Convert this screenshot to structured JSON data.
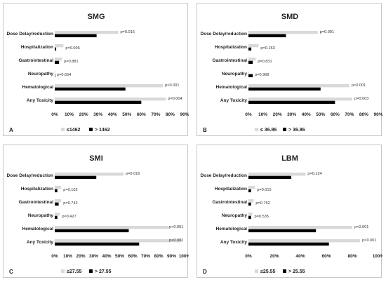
{
  "colors": {
    "low": "#d9d9d9",
    "high": "#000000",
    "text": "#222222",
    "border": "#c8c8c8"
  },
  "chart_data": [
    {
      "type": "bar",
      "title": "SMG",
      "panel_label": "A",
      "categories": [
        "Dose Delay/reduction",
        "Hospitalization",
        "Gastrointestinal",
        "Neuropathy",
        "Hematological",
        "Any Toxicity"
      ],
      "xlim": [
        0,
        0.9
      ],
      "ticks": [
        "0%",
        "10%",
        "20%",
        "30%",
        "40%",
        "50%",
        "60%",
        "70%",
        "80%",
        "90%"
      ],
      "series": [
        {
          "name": "≤1462",
          "values": [
            0.44,
            0.06,
            0.05,
            0.0,
            0.75,
            0.77
          ]
        },
        {
          "name": "> 1462",
          "values": [
            0.29,
            0.01,
            0.03,
            0.0,
            0.49,
            0.6
          ]
        }
      ],
      "annotations": [
        "p=0.015",
        "p=0.006",
        "p=0.881",
        "p=0.654",
        "p<0.001",
        "p=0.004"
      ],
      "legend": [
        "≤1462",
        "> 1462"
      ]
    },
    {
      "type": "bar",
      "title": "SMD",
      "panel_label": "B",
      "categories": [
        "Dose Delay/reduction",
        "Hospitalization",
        "Gastrointestinal",
        "Neuropathy",
        "Hematological",
        "Any Toxicity"
      ],
      "xlim": [
        0,
        0.9
      ],
      "ticks": [
        "0%",
        "10%",
        "20%",
        "30%",
        "40%",
        "50%",
        "60%",
        "70%",
        "80%",
        "90%"
      ],
      "series": [
        {
          "name": "≤ 36.86",
          "values": [
            0.48,
            0.07,
            0.05,
            0.0,
            0.7,
            0.72
          ]
        },
        {
          "name": "> 36.86",
          "values": [
            0.26,
            0.02,
            0.03,
            0.03,
            0.5,
            0.6
          ]
        }
      ],
      "annotations": [
        "p=0.001",
        "p=0.153",
        "p=0.831",
        "p=0.968",
        "p<0.001",
        "p=0.003"
      ],
      "legend": [
        "≤ 36.86",
        "> 36.86"
      ]
    },
    {
      "type": "bar",
      "title": "SMI",
      "panel_label": "C",
      "categories": [
        "Dose Delay/reduction",
        "Hospitalization",
        "Gastrointestinal",
        "Neuropathy",
        "Hematological",
        "Any Toxicity"
      ],
      "xlim": [
        0,
        1.0
      ],
      "ticks": [
        "0%",
        "10%",
        "20%",
        "30%",
        "40%",
        "50%",
        "60%",
        "70%",
        "80%",
        "90%",
        "100%"
      ],
      "series": [
        {
          "name": "≤27.55",
          "values": [
            0.53,
            0.05,
            0.05,
            0.04,
            0.88,
            0.98
          ]
        },
        {
          "name": "> 27.55",
          "values": [
            0.32,
            0.02,
            0.03,
            0.02,
            0.57,
            0.65
          ]
        }
      ],
      "annotations": [
        "p=0.016",
        "p=0.102",
        "p=0.742",
        "p=0.427",
        "p<0.001",
        "p<0.001"
      ],
      "legend": [
        "≤27.55",
        "> 27.55"
      ]
    },
    {
      "type": "bar",
      "title": "LBM",
      "panel_label": "D",
      "categories": [
        "Dose Delay/reduction",
        "Hospitalization",
        "Gastrointestinal",
        "Neuropathy",
        "Hematological",
        "Any Toxicity"
      ],
      "xlim": [
        0,
        1.0
      ],
      "ticks": [
        "0%",
        "20%",
        "40%",
        "60%",
        "80%",
        "100%"
      ],
      "series": [
        {
          "name": "≤25.55",
          "values": [
            0.44,
            0.05,
            0.04,
            0.03,
            0.8,
            0.86
          ]
        },
        {
          "name": "> 25.55",
          "values": [
            0.33,
            0.02,
            0.02,
            0.02,
            0.52,
            0.62
          ]
        }
      ],
      "annotations": [
        "p=0.124",
        "p=0.015",
        "p=0.752",
        "p=0.535",
        "p<0.001",
        "p<0.001"
      ],
      "legend": [
        "≤25.55",
        "> 25.55"
      ]
    }
  ]
}
